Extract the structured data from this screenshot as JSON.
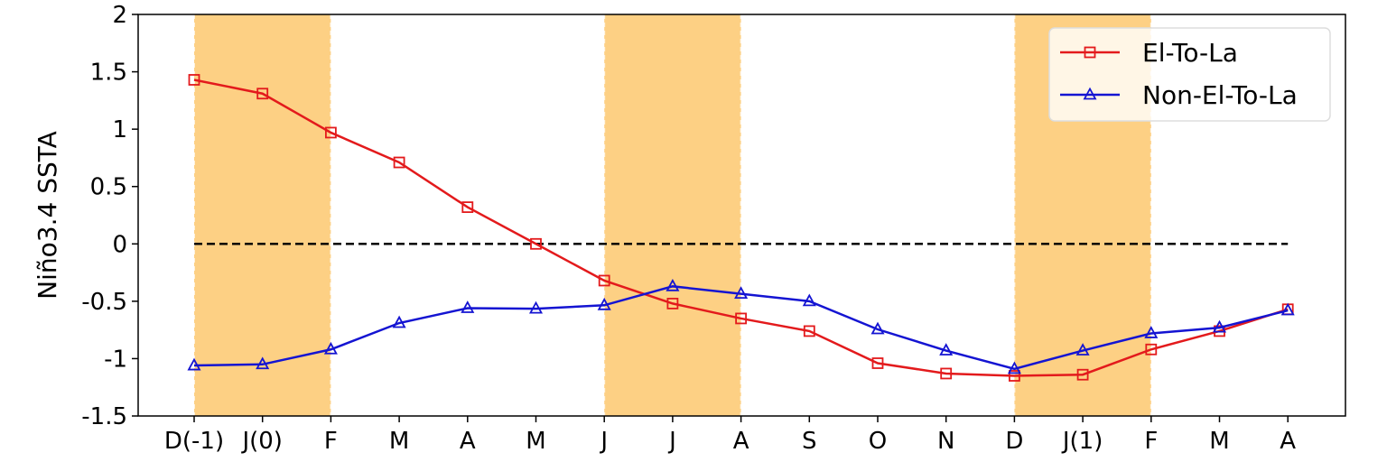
{
  "chart_data": {
    "type": "line",
    "title": "",
    "xlabel": "",
    "ylabel": "Niño3.4 SSTA",
    "categories": [
      "D(-1)",
      "J(0)",
      "F",
      "M",
      "A",
      "M",
      "J",
      "J",
      "A",
      "S",
      "O",
      "N",
      "D",
      "J(1)",
      "F",
      "M",
      "A"
    ],
    "ylim": [
      -1.5,
      2
    ],
    "yticks": [
      2,
      1.5,
      1,
      0.5,
      0,
      -0.5,
      -1,
      -1.5
    ],
    "ytick_labels": [
      "2",
      "1.5",
      "1",
      "0.5",
      "0",
      "-0.5",
      "-1",
      "-1.5"
    ],
    "grid": false,
    "legend_position": "top-right",
    "zero_line": 0,
    "shaded_ranges": [
      [
        0,
        2
      ],
      [
        6,
        8
      ],
      [
        12,
        14
      ]
    ],
    "shade_color": "#FDD084",
    "series": [
      {
        "name": "El-To-La",
        "color": "#E31A1C",
        "marker": "square",
        "values": [
          1.43,
          1.31,
          0.97,
          0.71,
          0.32,
          0.0,
          -0.32,
          -0.52,
          -0.65,
          -0.76,
          -1.04,
          -1.13,
          -1.15,
          -1.14,
          -0.92,
          -0.76,
          -0.57
        ]
      },
      {
        "name": "Non-El-To-La",
        "color": "#1414D2",
        "marker": "triangle",
        "values": [
          -1.06,
          -1.05,
          -0.92,
          -0.69,
          -0.56,
          -0.565,
          -0.535,
          -0.37,
          -0.435,
          -0.5,
          -0.745,
          -0.93,
          -1.09,
          -0.93,
          -0.78,
          -0.73,
          -0.58
        ]
      }
    ]
  }
}
